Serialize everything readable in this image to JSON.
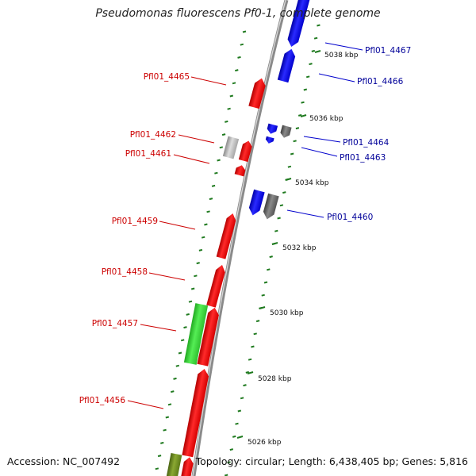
{
  "title": "Pseudomonas fluorescens Pf0-1, complete genome",
  "footer": {
    "accession": "Accession: NC_007492",
    "topology": "Topology: circular; Length: 6,438,405 bp; Genes: 5,816"
  },
  "colors": {
    "backbone": "#8a8a8a",
    "forward_gene": "#ff1a1a",
    "reverse_gene": "#1a1aff",
    "rna_gene": "#44dd44",
    "pseudo_gene": "#b0b0b0",
    "gray_gene": "#666666",
    "olive_gene": "#6d8c1f",
    "tick": "#1f7a1f",
    "label_forward": "#cc0000",
    "label_reverse": "#000099",
    "kbp_label": "#111111"
  },
  "kbp_ticks": [
    {
      "label": "5038 kbp"
    },
    {
      "label": "5036 kbp"
    },
    {
      "label": "5034 kbp"
    },
    {
      "label": "5032 kbp"
    },
    {
      "label": "5030 kbp"
    },
    {
      "label": "5028 kbp"
    },
    {
      "label": "5026 kbp"
    }
  ],
  "gene_labels": [
    {
      "text": "Pfl01_4467",
      "strand": "reverse"
    },
    {
      "text": "Pfl01_4466",
      "strand": "reverse"
    },
    {
      "text": "Pfl01_4465",
      "strand": "forward"
    },
    {
      "text": "Pfl01_4464",
      "strand": "reverse"
    },
    {
      "text": "Pfl01_4463",
      "strand": "reverse"
    },
    {
      "text": "Pfl01_4462",
      "strand": "forward"
    },
    {
      "text": "Pfl01_4461",
      "strand": "forward"
    },
    {
      "text": "Pfl01_4460",
      "strand": "reverse"
    },
    {
      "text": "Pfl01_4459",
      "strand": "forward"
    },
    {
      "text": "Pfl01_4458",
      "strand": "forward"
    },
    {
      "text": "Pfl01_4457",
      "strand": "forward"
    },
    {
      "text": "Pfl01_4456",
      "strand": "forward"
    }
  ]
}
